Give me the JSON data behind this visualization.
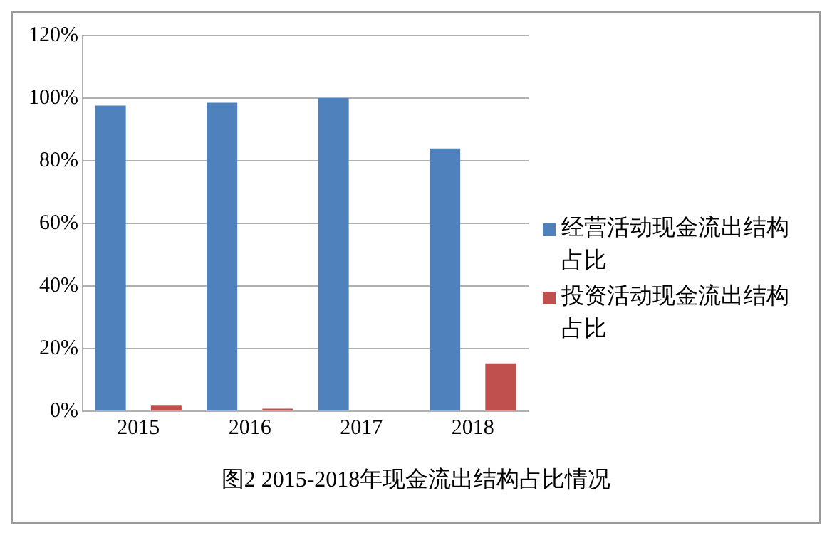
{
  "chart_data": {
    "type": "bar",
    "title": "图2  2015-2018年现金流出结构占比情况",
    "categories": [
      "2015",
      "2016",
      "2017",
      "2018"
    ],
    "series": [
      {
        "name": "经营活动现金流出结构占比",
        "color": "#4f81bd",
        "values": [
          97.6,
          98.5,
          100,
          83.9
        ]
      },
      {
        "name": "投资活动现金流出结构占比",
        "color": "#c0504d",
        "values": [
          2.0,
          0.8,
          0,
          15.3
        ]
      }
    ],
    "ylim": [
      0,
      120
    ],
    "yticks": [
      {
        "value": 0,
        "label": "0%"
      },
      {
        "value": 20,
        "label": "20%"
      },
      {
        "value": 40,
        "label": "40%"
      },
      {
        "value": 60,
        "label": "60%"
      },
      {
        "value": 80,
        "label": "80%"
      },
      {
        "value": 100,
        "label": "100%"
      },
      {
        "value": 120,
        "label": "120%"
      }
    ],
    "grid": "y",
    "legend": "right"
  }
}
